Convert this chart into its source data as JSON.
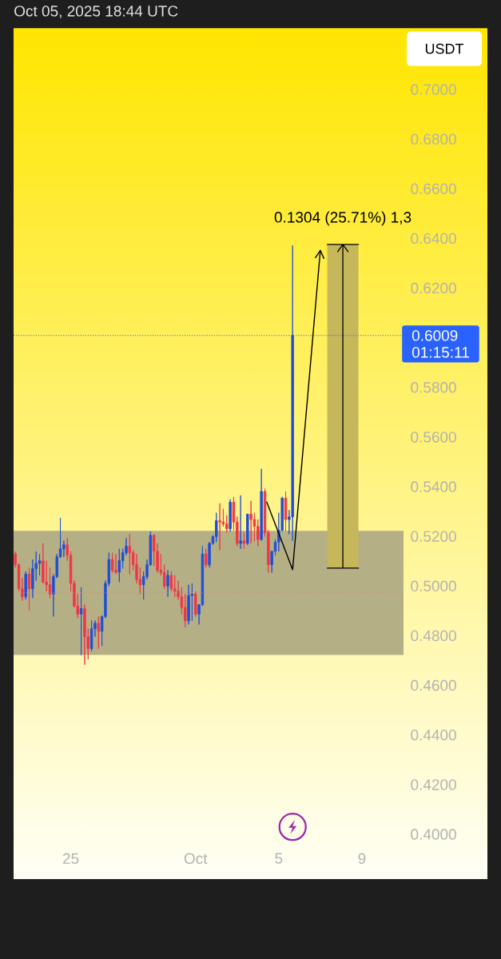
{
  "chart_data": {
    "type": "candlestick",
    "title": "Oct 05, 2025 18:44 UTC",
    "ylabel": "USDT",
    "x": [
      "2025-09-22T08:00",
      "2025-09-22T12:00",
      "2025-09-22T16:00",
      "2025-09-22T20:00",
      "2025-09-23T00:00",
      "2025-09-23T04:00",
      "2025-09-23T08:00",
      "2025-09-23T12:00",
      "2025-09-23T16:00",
      "2025-09-23T20:00",
      "2025-09-24T00:00",
      "2025-09-24T04:00",
      "2025-09-24T08:00",
      "2025-09-24T12:00",
      "2025-09-24T16:00",
      "2025-09-24T20:00",
      "2025-09-25T00:00",
      "2025-09-25T04:00",
      "2025-09-25T08:00",
      "2025-09-25T12:00",
      "2025-09-25T16:00",
      "2025-09-25T20:00",
      "2025-09-26T00:00",
      "2025-09-26T04:00",
      "2025-09-26T08:00",
      "2025-09-26T12:00",
      "2025-09-26T16:00",
      "2025-09-26T20:00",
      "2025-09-27T00:00",
      "2025-09-27T04:00",
      "2025-09-27T08:00",
      "2025-09-27T12:00",
      "2025-09-27T16:00",
      "2025-09-27T20:00",
      "2025-09-28T00:00",
      "2025-09-28T04:00",
      "2025-09-28T08:00",
      "2025-09-28T12:00",
      "2025-09-28T16:00",
      "2025-09-28T20:00",
      "2025-09-29T00:00",
      "2025-09-29T04:00",
      "2025-09-29T08:00",
      "2025-09-29T12:00",
      "2025-09-29T16:00",
      "2025-09-29T20:00",
      "2025-09-30T00:00",
      "2025-09-30T04:00",
      "2025-09-30T08:00",
      "2025-09-30T12:00",
      "2025-09-30T16:00",
      "2025-09-30T20:00",
      "2025-10-01T00:00",
      "2025-10-01T04:00",
      "2025-10-01T08:00",
      "2025-10-01T12:00",
      "2025-10-01T16:00",
      "2025-10-01T20:00",
      "2025-10-02T00:00",
      "2025-10-02T04:00",
      "2025-10-02T08:00",
      "2025-10-02T12:00",
      "2025-10-02T16:00",
      "2025-10-02T20:00",
      "2025-10-03T00:00",
      "2025-10-03T04:00",
      "2025-10-03T08:00",
      "2025-10-03T12:00",
      "2025-10-03T16:00",
      "2025-10-03T20:00",
      "2025-10-04T00:00",
      "2025-10-04T04:00",
      "2025-10-04T08:00",
      "2025-10-04T12:00",
      "2025-10-04T16:00",
      "2025-10-04T20:00",
      "2025-10-05T00:00",
      "2025-10-05T04:00",
      "2025-10-05T08:00",
      "2025-10-05T12:00",
      "2025-10-05T16:00"
    ],
    "ohlc": [
      [
        0.5129,
        0.5139,
        0.5075,
        0.5086
      ],
      [
        0.5086,
        0.5091,
        0.4979,
        0.4989
      ],
      [
        0.4989,
        0.5032,
        0.4941,
        0.4957
      ],
      [
        0.4957,
        0.5059,
        0.4946,
        0.5048
      ],
      [
        0.5048,
        0.5075,
        0.4903,
        0.4989
      ],
      [
        0.4989,
        0.5107,
        0.4952,
        0.507
      ],
      [
        0.507,
        0.5139,
        0.5022,
        0.5091
      ],
      [
        0.5091,
        0.5129,
        0.5043,
        0.5102
      ],
      [
        0.5102,
        0.5172,
        0.5011,
        0.5016
      ],
      [
        0.5016,
        0.5102,
        0.4979,
        0.5005
      ],
      [
        0.5005,
        0.5075,
        0.4952,
        0.4968
      ],
      [
        0.4968,
        0.5048,
        0.4877,
        0.5038
      ],
      [
        0.5038,
        0.5129,
        0.5032,
        0.5118
      ],
      [
        0.5118,
        0.5274,
        0.5113,
        0.515
      ],
      [
        0.515,
        0.5182,
        0.5118,
        0.5166
      ],
      [
        0.5166,
        0.5193,
        0.5102,
        0.5124
      ],
      [
        0.5124,
        0.5139,
        0.4979,
        0.5011
      ],
      [
        0.5011,
        0.5022,
        0.4914,
        0.492
      ],
      [
        0.492,
        0.4968,
        0.4871,
        0.4887
      ],
      [
        0.4887,
        0.4995,
        0.4721,
        0.4909
      ],
      [
        0.4909,
        0.4925,
        0.4683,
        0.4796
      ],
      [
        0.4796,
        0.4828,
        0.4705,
        0.4748
      ],
      [
        0.4748,
        0.4861,
        0.4737,
        0.4828
      ],
      [
        0.4828,
        0.4861,
        0.4796,
        0.485
      ],
      [
        0.485,
        0.4877,
        0.4748,
        0.4818
      ],
      [
        0.4818,
        0.4882,
        0.4759,
        0.4877
      ],
      [
        0.4877,
        0.5022,
        0.4871,
        0.5011
      ],
      [
        0.5011,
        0.5134,
        0.5,
        0.5107
      ],
      [
        0.5107,
        0.5134,
        0.5054,
        0.5064
      ],
      [
        0.5064,
        0.5129,
        0.5048,
        0.5056
      ],
      [
        0.5056,
        0.515,
        0.5016,
        0.5102
      ],
      [
        0.5102,
        0.515,
        0.507,
        0.5134
      ],
      [
        0.5134,
        0.5193,
        0.5124,
        0.5161
      ],
      [
        0.5161,
        0.5209,
        0.5048,
        0.5134
      ],
      [
        0.5134,
        0.5145,
        0.5064,
        0.5086
      ],
      [
        0.5086,
        0.5129,
        0.5011,
        0.5027
      ],
      [
        0.5027,
        0.5075,
        0.4968,
        0.5005
      ],
      [
        0.5005,
        0.5059,
        0.4946,
        0.5038
      ],
      [
        0.5038,
        0.5107,
        0.5027,
        0.5086
      ],
      [
        0.5086,
        0.522,
        0.5081,
        0.5204
      ],
      [
        0.5204,
        0.5209,
        0.5081,
        0.514
      ],
      [
        0.514,
        0.5172,
        0.5054,
        0.5064
      ],
      [
        0.5064,
        0.5129,
        0.5043,
        0.5054
      ],
      [
        0.5054,
        0.5086,
        0.4989,
        0.5
      ],
      [
        0.5,
        0.5064,
        0.4957,
        0.5043
      ],
      [
        0.5043,
        0.5059,
        0.4979,
        0.4989
      ],
      [
        0.4989,
        0.5043,
        0.4957,
        0.4979
      ],
      [
        0.4979,
        0.5021,
        0.4946,
        0.4957
      ],
      [
        0.4957,
        0.4995,
        0.4887,
        0.4914
      ],
      [
        0.4914,
        0.4968,
        0.4834,
        0.486
      ],
      [
        0.486,
        0.5005,
        0.4845,
        0.4962
      ],
      [
        0.4962,
        0.5011,
        0.486,
        0.4968
      ],
      [
        0.4968,
        0.4979,
        0.4877,
        0.4887
      ],
      [
        0.4887,
        0.4925,
        0.4845,
        0.4925
      ],
      [
        0.4925,
        0.5161,
        0.492,
        0.5129
      ],
      [
        0.5129,
        0.515,
        0.5075,
        0.5086
      ],
      [
        0.5086,
        0.5177,
        0.5075,
        0.5172
      ],
      [
        0.5172,
        0.5204,
        0.5166,
        0.5199
      ],
      [
        0.5199,
        0.5295,
        0.5177,
        0.5263
      ],
      [
        0.5263,
        0.5333,
        0.5145,
        0.5258
      ],
      [
        0.5258,
        0.5311,
        0.524,
        0.525
      ],
      [
        0.525,
        0.5285,
        0.5215,
        0.5231
      ],
      [
        0.5231,
        0.5349,
        0.522,
        0.5338
      ],
      [
        0.5338,
        0.5359,
        0.5225,
        0.5258
      ],
      [
        0.5258,
        0.5279,
        0.5161,
        0.5172
      ],
      [
        0.5172,
        0.5365,
        0.515,
        0.5182
      ],
      [
        0.5182,
        0.5215,
        0.515,
        0.5172
      ],
      [
        0.5172,
        0.529,
        0.5166,
        0.529
      ],
      [
        0.529,
        0.5343,
        0.5172,
        0.5268
      ],
      [
        0.5268,
        0.5295,
        0.5182,
        0.524
      ],
      [
        0.524,
        0.5268,
        0.5161,
        0.5188
      ],
      [
        0.5188,
        0.5472,
        0.5182,
        0.5381
      ],
      [
        0.5381,
        0.5392,
        0.5199,
        0.5215
      ],
      [
        0.5215,
        0.5225,
        0.5054,
        0.5086
      ],
      [
        0.5086,
        0.514,
        0.5054,
        0.514
      ],
      [
        0.514,
        0.5188,
        0.5123,
        0.5177
      ],
      [
        0.5177,
        0.5295,
        0.514,
        0.5225
      ],
      [
        0.5225,
        0.5359,
        0.522,
        0.5354
      ],
      [
        0.5354,
        0.5381,
        0.522,
        0.5268
      ],
      [
        0.5268,
        0.5306,
        0.5209,
        0.5279
      ],
      [
        0.5279,
        0.6372,
        0.5182,
        0.6009
      ]
    ],
    "colors": [
      "#f23645",
      "#f23645",
      "#f23645",
      "#1e4fd6",
      "#f23645",
      "#1e4fd6",
      "#1e4fd6",
      "#1e4fd6",
      "#f23645",
      "#f23645",
      "#f23645",
      "#1e4fd6",
      "#1e4fd6",
      "#1e4fd6",
      "#1e4fd6",
      "#f23645",
      "#f23645",
      "#f23645",
      "#f23645",
      "#1e4fd6",
      "#f23645",
      "#f23645",
      "#1e4fd6",
      "#1e4fd6",
      "#f23645",
      "#1e4fd6",
      "#1e4fd6",
      "#1e4fd6",
      "#f23645",
      "#f23645",
      "#1e4fd6",
      "#1e4fd6",
      "#1e4fd6",
      "#f23645",
      "#f23645",
      "#f23645",
      "#f23645",
      "#1e4fd6",
      "#1e4fd6",
      "#1e4fd6",
      "#f23645",
      "#f23645",
      "#f23645",
      "#f23645",
      "#1e4fd6",
      "#f23645",
      "#f23645",
      "#f23645",
      "#f23645",
      "#f23645",
      "#1e4fd6",
      "#1e4fd6",
      "#f23645",
      "#1e4fd6",
      "#1e4fd6",
      "#f23645",
      "#1e4fd6",
      "#1e4fd6",
      "#1e4fd6",
      "#f23645",
      "#f23645",
      "#f23645",
      "#1e4fd6",
      "#f23645",
      "#f23645",
      "#1e4fd6",
      "#f23645",
      "#1e4fd6",
      "#f23645",
      "#f23645",
      "#f23645",
      "#1e4fd6",
      "#f23645",
      "#f23645",
      "#1e4fd6",
      "#1e4fd6",
      "#1e4fd6",
      "#1e4fd6",
      "#f23645",
      "#1e4fd6",
      "#1e4fd6"
    ],
    "series": [
      {
        "type": "line",
        "x": [
          "2025-10-04T10:00",
          "2025-10-05T16:00",
          "2025-10-07T00:00"
        ],
        "values": [
          0.534,
          0.5066,
          0.6352
        ],
        "color": "#000000"
      },
      {
        "type": "bar",
        "x": [
          "2025-10-08T02:00"
        ],
        "base": [
          0.5072
        ],
        "values": [
          0.1304
        ],
        "color": "#c6b75a",
        "value_labels": [
          "0.1304 (25.71%) 1,3"
        ]
      }
    ],
    "bands": [
      {
        "axis": "y",
        "from": 0.4723,
        "to": 0.5222,
        "color": "#b5af86"
      }
    ],
    "ref_lines": [
      {
        "axis": "y",
        "value": 0.6009,
        "label": "0.6009",
        "color": "#2962ff",
        "line_style": "dotted"
      },
      {
        "axis": "y",
        "value": 0.4973,
        "color": "#cc8f80",
        "line_style": "dotted"
      }
    ],
    "annotations": [
      "01:15:11"
    ],
    "xlim": [
      "2025-09-22T06:00",
      "2025-10-11T00:00"
    ],
    "xticks": [
      {
        "value": "2025-09-25",
        "label": "25"
      },
      {
        "value": "2025-10-01",
        "label": "Oct"
      },
      {
        "value": "2025-10-05",
        "label": "5"
      },
      {
        "value": "2025-10-09",
        "label": "9"
      }
    ],
    "ylim": [
      0.4,
      0.7
    ],
    "yticks": [
      {
        "value": 0.4,
        "label": "0.4000"
      },
      {
        "value": 0.42,
        "label": "0.4200"
      },
      {
        "value": 0.44,
        "label": "0.4400"
      },
      {
        "value": 0.46,
        "label": "0.4600"
      },
      {
        "value": 0.48,
        "label": "0.4800"
      },
      {
        "value": 0.5,
        "label": "0.5000"
      },
      {
        "value": 0.52,
        "label": "0.5200"
      },
      {
        "value": 0.54,
        "label": "0.5400"
      },
      {
        "value": 0.56,
        "label": "0.5600"
      },
      {
        "value": 0.58,
        "label": "0.5800"
      },
      {
        "value": 0.62,
        "label": "0.6200"
      },
      {
        "value": 0.64,
        "label": "0.6400"
      },
      {
        "value": 0.66,
        "label": "0.6600"
      },
      {
        "value": 0.68,
        "label": "0.6800"
      },
      {
        "value": 0.7,
        "label": "0.7000"
      }
    ]
  }
}
